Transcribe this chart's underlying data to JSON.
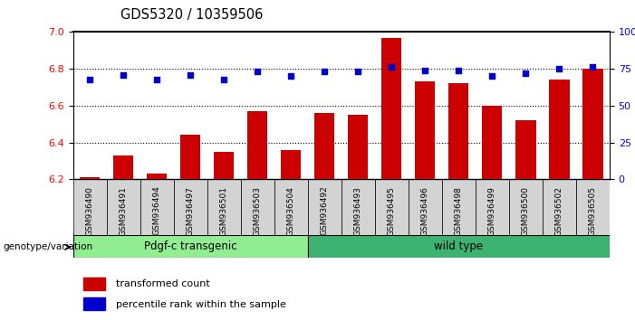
{
  "title": "GDS5320 / 10359506",
  "samples": [
    "GSM936490",
    "GSM936491",
    "GSM936494",
    "GSM936497",
    "GSM936501",
    "GSM936503",
    "GSM936504",
    "GSM936492",
    "GSM936493",
    "GSM936495",
    "GSM936496",
    "GSM936498",
    "GSM936499",
    "GSM936500",
    "GSM936502",
    "GSM936505"
  ],
  "bar_values": [
    6.21,
    6.33,
    6.23,
    6.44,
    6.35,
    6.57,
    6.36,
    6.56,
    6.55,
    6.97,
    6.73,
    6.72,
    6.6,
    6.52,
    6.74,
    6.8
  ],
  "percentile_values": [
    68,
    71,
    68,
    71,
    68,
    73,
    70,
    73,
    73,
    76,
    74,
    74,
    70,
    72,
    75,
    76
  ],
  "group_labels": [
    "Pdgf-c transgenic",
    "wild type"
  ],
  "group_split": 7,
  "group_colors": [
    "#90ee90",
    "#3cb371"
  ],
  "bar_color": "#cc0000",
  "dot_color": "#0000cc",
  "ylim_left": [
    6.2,
    7.0
  ],
  "ylim_right": [
    0,
    100
  ],
  "yticks_left": [
    6.2,
    6.4,
    6.6,
    6.8,
    7.0
  ],
  "yticks_right": [
    0,
    25,
    50,
    75,
    100
  ],
  "grid_values": [
    6.4,
    6.6,
    6.8
  ],
  "background_color": "#ffffff",
  "bar_width": 0.6,
  "legend_items": [
    "transformed count",
    "percentile rank within the sample"
  ],
  "genotype_label": "genotype/variation",
  "xtick_bg": "#d3d3d3",
  "n_transgenic": 7,
  "n_wildtype": 9
}
